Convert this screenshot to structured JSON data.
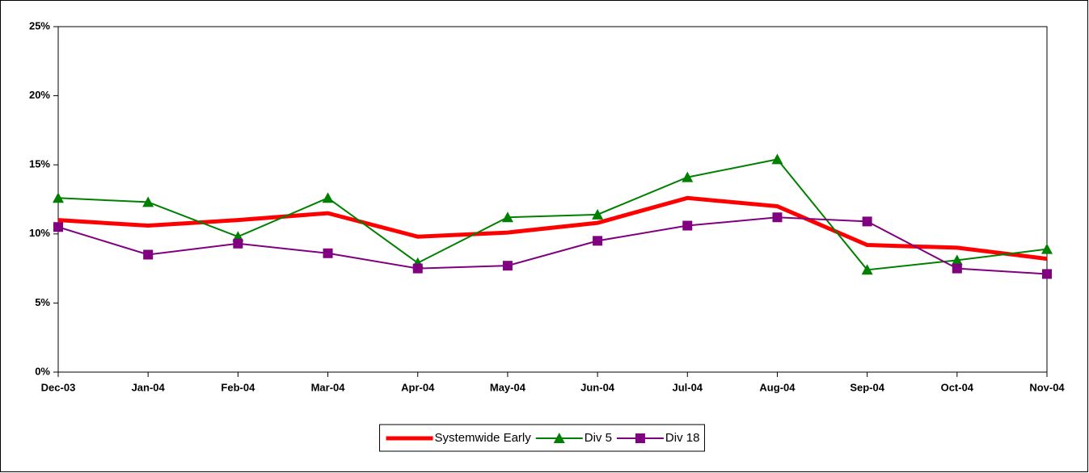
{
  "chart_data": {
    "type": "line",
    "categories": [
      "Dec-03",
      "Jan-04",
      "Feb-04",
      "Mar-04",
      "Apr-04",
      "May-04",
      "Jun-04",
      "Jul-04",
      "Aug-04",
      "Sep-04",
      "Oct-04",
      "Nov-04"
    ],
    "series": [
      {
        "name": "Systemwide Early",
        "color": "#ff0000",
        "marker": "none",
        "values": [
          11.0,
          10.6,
          11.0,
          11.5,
          9.8,
          10.1,
          10.8,
          12.6,
          12.0,
          9.2,
          9.0,
          8.2
        ]
      },
      {
        "name": "Div 5",
        "color": "#008000",
        "marker": "triangle",
        "values": [
          12.6,
          12.3,
          9.8,
          12.6,
          7.9,
          11.2,
          11.4,
          14.1,
          15.4,
          7.4,
          8.1,
          8.9
        ]
      },
      {
        "name": "Div 18",
        "color": "#800080",
        "marker": "square",
        "values": [
          10.5,
          8.5,
          9.3,
          8.6,
          7.5,
          7.7,
          9.5,
          10.6,
          11.2,
          10.9,
          7.5,
          7.1
        ]
      }
    ],
    "ylim": [
      0,
      25
    ],
    "yticks": [
      {
        "value": 0,
        "label": "0%"
      },
      {
        "value": 5,
        "label": "5%"
      },
      {
        "value": 10,
        "label": "10%"
      },
      {
        "value": 15,
        "label": "15%"
      },
      {
        "value": 20,
        "label": "20%"
      },
      {
        "value": 25,
        "label": "25%"
      }
    ],
    "grid": false,
    "legend": "bottom"
  }
}
